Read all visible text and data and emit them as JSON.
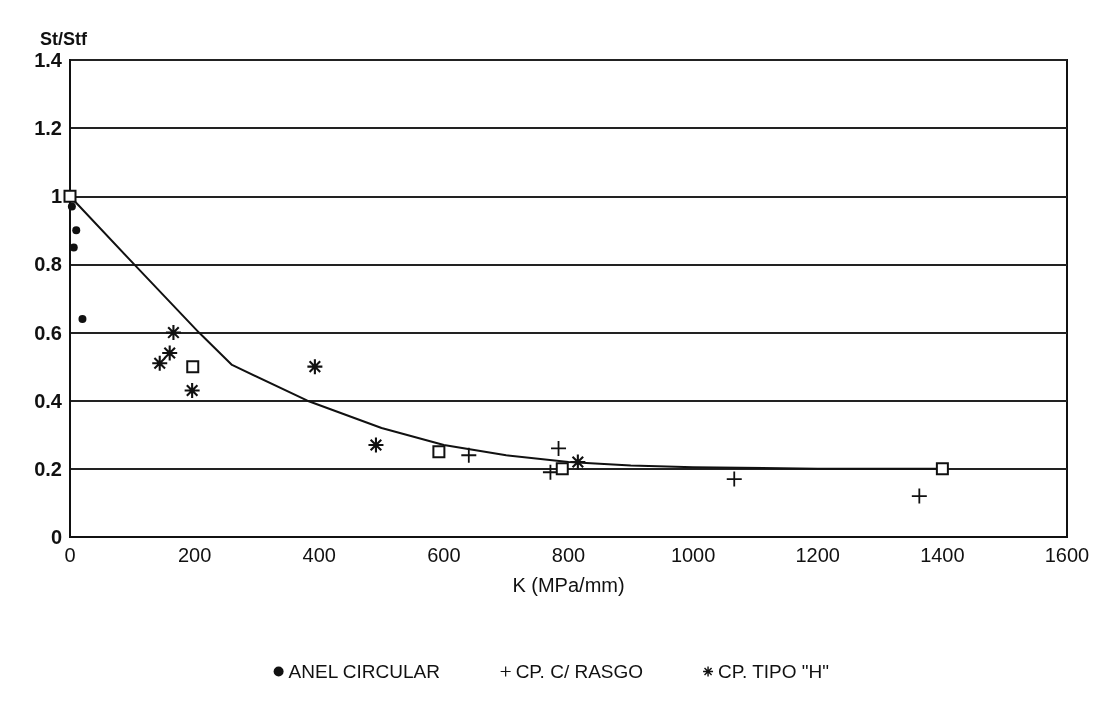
{
  "chart_data": {
    "type": "scatter",
    "xlabel": "K (MPa/mm)",
    "ylabel": "St/Stf",
    "xlim": [
      0,
      1600
    ],
    "xticks": [
      0,
      200,
      400,
      600,
      800,
      1000,
      1200,
      1400,
      1600
    ],
    "ylim": [
      0,
      1.4
    ],
    "yticks": [
      0,
      0.2,
      0.4,
      0.6,
      0.8,
      1,
      1.2,
      1.4
    ],
    "grid": "y",
    "legend": "bottom",
    "series": [
      {
        "name": "ANEL CIRCULAR",
        "color": "#111111",
        "marker": "circle",
        "x": [
          3,
          10,
          6,
          20
        ],
        "values": [
          0.97,
          0.9,
          0.85,
          0.64
        ]
      },
      {
        "name": "CP. C/ RASGO",
        "color": "#111111",
        "marker": "cross",
        "x": [
          640,
          784,
          771,
          1066,
          1363
        ],
        "values": [
          0.24,
          0.26,
          0.19,
          0.17,
          0.12
        ]
      },
      {
        "name": "CP. TIPO \"H\"",
        "color": "#111111",
        "marker": "star",
        "x": [
          166,
          160,
          144,
          196,
          393,
          491,
          815
        ],
        "values": [
          0.6,
          0.54,
          0.51,
          0.43,
          0.5,
          0.27,
          0.22
        ]
      },
      {
        "color": "#111111",
        "marker": "square",
        "x": [
          0,
          197,
          592,
          790,
          1400
        ],
        "values": [
          1,
          0.5,
          0.25,
          0.2,
          0.2
        ]
      },
      {
        "type": "line",
        "color": "#111111",
        "marker": "none",
        "x": [
          0,
          103,
          207,
          260,
          381,
          500,
          600,
          700,
          800,
          900,
          1000,
          1200,
          1400
        ],
        "values": [
          1,
          0.8,
          0.6,
          0.505,
          0.4,
          0.32,
          0.27,
          0.24,
          0.22,
          0.21,
          0.205,
          0.2,
          0.2
        ]
      }
    ]
  }
}
